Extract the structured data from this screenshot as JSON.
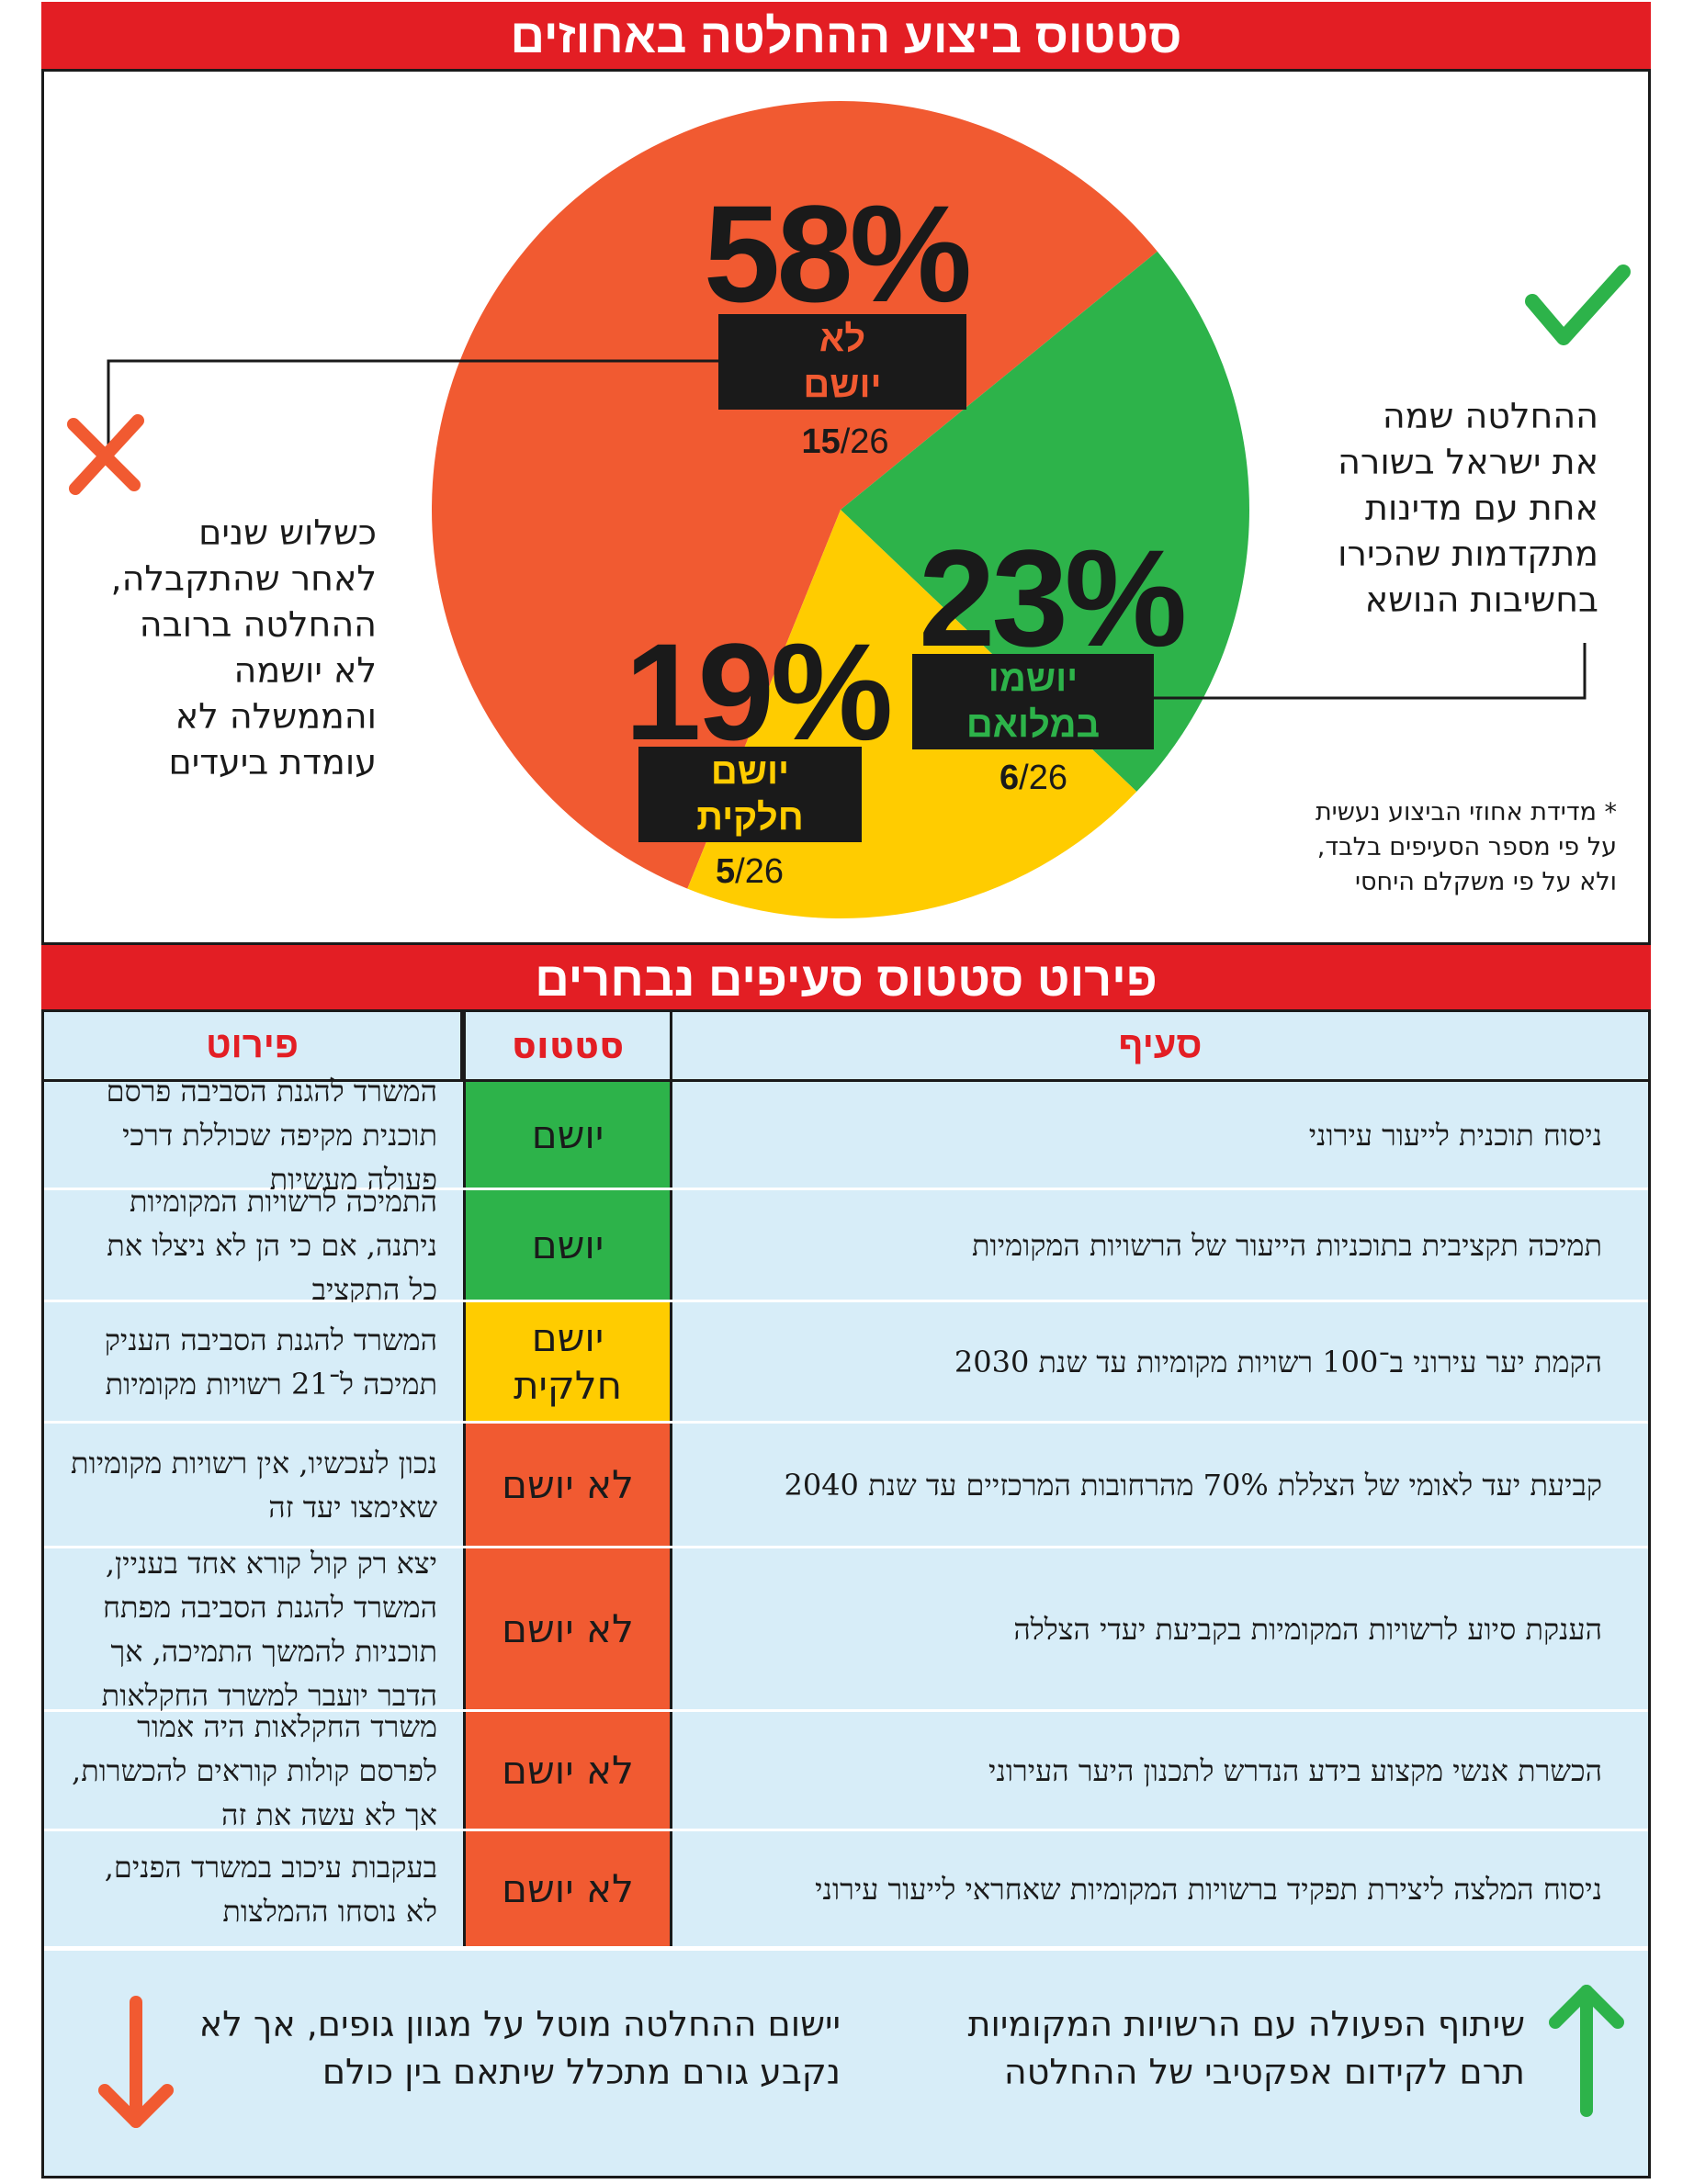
{
  "header": {
    "title": "סטטוס ביצוע ההחלטה באחוזים"
  },
  "chart_data": {
    "type": "pie",
    "title": "סטטוס ביצוע ההחלטה באחוזים",
    "slices": [
      {
        "name": "לא יושם",
        "percent": 58,
        "count": 15,
        "total": 26,
        "color": "#f15a31"
      },
      {
        "name": "יושמו במלואם",
        "percent": 23,
        "count": 6,
        "total": 26,
        "color": "#2db34a"
      },
      {
        "name": "יושם חלקית",
        "percent": 19,
        "count": 5,
        "total": 26,
        "color": "#ffcc00"
      }
    ]
  },
  "pie_labels": {
    "red": {
      "pct": "58%",
      "line1": "לא",
      "line2": "יושם",
      "num": "15",
      "den": "/26"
    },
    "green": {
      "pct": "23%",
      "line1": "יושמו",
      "line2": "במלואם",
      "num": "6",
      "den": "/26"
    },
    "yellow": {
      "pct": "19%",
      "line1": "יושם",
      "line2": "חלקית",
      "num": "5",
      "den": "/26"
    }
  },
  "side_left": {
    "icon": "x-mark-icon",
    "lines": [
      "כשלוש שנים",
      "לאחר שהתקבלה,",
      "ההחלטה ברובה",
      "לא יושמה",
      "והממשלה לא",
      "עומדת ביעדים"
    ]
  },
  "side_right": {
    "icon": "check-mark-icon",
    "lines": [
      "ההחלטה שמה",
      "את ישראל בשורה",
      "אחת עם מדינות",
      "מתקדמות שהכירו",
      "בחשיבות הנושא"
    ]
  },
  "footnote": {
    "lines": [
      "* מדידת אחוזי הביצוע נעשית",
      "על פי מספר הסעיפים בלבד,",
      "ולא על פי משקלם היחסי"
    ]
  },
  "section2": {
    "title": "פירוט סטטוס סעיפים נבחרים"
  },
  "table": {
    "headers": {
      "clause": "סעיף",
      "status": "סטטוס",
      "detail": "פירוט"
    },
    "rows": [
      {
        "clause": "ניסוח תוכנית לייעור עירוני",
        "status": "יושם",
        "status_type": "green",
        "detail": "המשרד להגנת הסביבה פרסם תוכנית מקיפה שכוללת דרכי פעולה מעשיות"
      },
      {
        "clause": "תמיכה תקציבית בתוכניות הייעור של הרשויות המקומיות",
        "status": "יושם",
        "status_type": "green",
        "detail": "התמיכה לרשויות המקומיות ניתנה, אם כי הן לא ניצלו את כל התקציב"
      },
      {
        "clause": "הקמת יער עירוני ב־100 רשויות מקומיות עד שנת 2030",
        "status": "יושם חלקית",
        "status_type": "yellow",
        "detail": "המשרד להגנת הסביבה העניק תמיכה ל־21 רשויות מקומיות"
      },
      {
        "clause": "קביעת יעד לאומי של הצללת 70% מהרחובות המרכזיים עד שנת 2040",
        "status": "לא יושם",
        "status_type": "red",
        "detail": "נכון לעכשיו, אין רשויות מקומיות שאימצו יעד זה"
      },
      {
        "clause": "הענקת סיוע לרשויות המקומיות בקביעת יעדי הצללה",
        "status": "לא יושם",
        "status_type": "red",
        "detail": "יצא רק קול קורא אחד בעניין, המשרד להגנת הסביבה מפתח תוכניות להמשך התמיכה, אך הדבר יועבר למשרד החקלאות"
      },
      {
        "clause": "הכשרת אנשי מקצוע בידע הנדרש לתכנון היער העירוני",
        "status": "לא יושם",
        "status_type": "red",
        "detail": "משרד החקלאות היה אמור לפרסם קולות קוראים להכשרות, אך לא עשה את זה"
      },
      {
        "clause": "ניסוח המלצה ליצירת תפקיד ברשויות המקומיות שאחראי לייעור עירוני",
        "status": "לא יושם",
        "status_type": "red",
        "detail": "בעקבות עיכוב במשרד הפנים, לא נוסחו ההמלצות"
      }
    ]
  },
  "footer": {
    "positive": {
      "icon": "arrow-up-icon",
      "text": "שיתוף הפעולה עם הרשויות המקומיות תרם לקידום אפקטיבי של ההחלטה"
    },
    "negative": {
      "icon": "arrow-down-icon",
      "text": "יישום ההחלטה מוטל על מגוון גופים, אך לא נקבע גורם מתכלל שיתאם בין כולם"
    }
  },
  "colors": {
    "banner": "#e31e24",
    "table_bg": "#d7edf8",
    "red": "#f15a31",
    "green": "#2db34a",
    "yellow": "#ffcc00"
  }
}
